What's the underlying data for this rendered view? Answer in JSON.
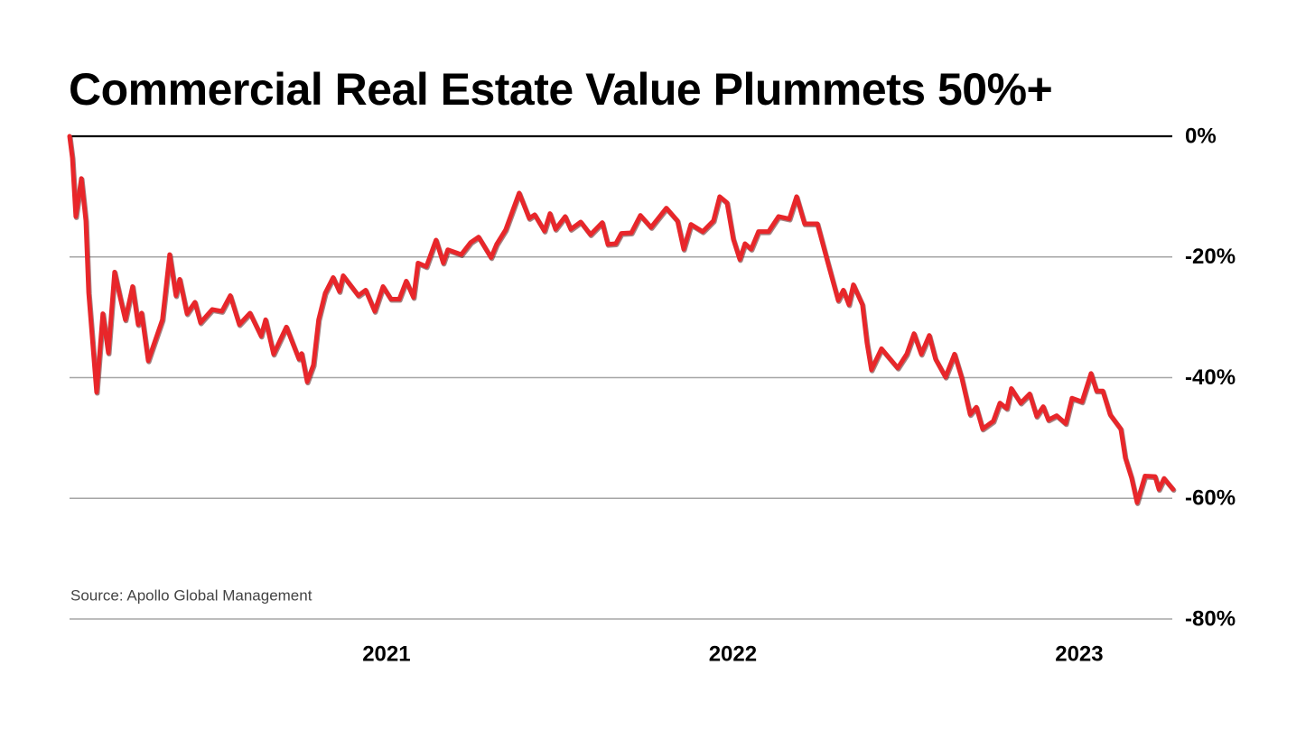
{
  "chart_data": {
    "type": "line",
    "title": "Commercial Real Estate Value Plummets 50%+",
    "source": "Source: Apollo Global Management",
    "color": "#e8262a",
    "xlim": [
      2020.085,
      2023.274
    ],
    "xticks": [
      2021,
      2022,
      2023
    ],
    "ylim": [
      -80,
      0
    ],
    "yticks": [
      {
        "value": 0,
        "label": "0%"
      },
      {
        "value": -20,
        "label": "-20%"
      },
      {
        "value": -40,
        "label": "-40%"
      },
      {
        "value": -60,
        "label": "-60%"
      },
      {
        "value": -80,
        "label": "-80%"
      }
    ],
    "grid": true,
    "x": [
      2020.085,
      2020.093,
      2020.103,
      2020.119,
      2020.132,
      2020.14,
      2020.163,
      2020.181,
      2020.197,
      2020.215,
      2020.231,
      2020.246,
      2020.267,
      2020.283,
      2020.293,
      2020.312,
      2020.353,
      2020.374,
      2020.392,
      2020.403,
      2020.424,
      2020.447,
      2020.463,
      2020.497,
      2020.525,
      2020.549,
      2020.575,
      2020.606,
      2020.638,
      2020.651,
      2020.674,
      2020.711,
      2020.747,
      2020.755,
      2020.771,
      2020.789,
      2020.804,
      2020.823,
      2020.846,
      2020.864,
      2020.875,
      2020.919,
      2020.94,
      2020.966,
      2020.99,
      2021.013,
      2021.037,
      2021.057,
      2021.078,
      2021.091,
      2021.115,
      2021.143,
      2021.164,
      2021.177,
      2021.216,
      2021.243,
      2021.266,
      2021.302,
      2021.318,
      2021.344,
      2021.383,
      2021.412,
      2021.428,
      2021.456,
      2021.472,
      2021.488,
      2021.516,
      2021.532,
      2021.561,
      2021.589,
      2021.623,
      2021.639,
      2021.662,
      2021.678,
      2021.707,
      2021.733,
      2021.764,
      2021.808,
      2021.84,
      2021.858,
      2021.879,
      2021.913,
      2021.944,
      2021.962,
      2021.983,
      2022.001,
      2022.02,
      2022.035,
      2022.053,
      2022.074,
      2022.103,
      2022.132,
      2022.163,
      2022.184,
      2022.207,
      2022.244,
      2022.273,
      2022.304,
      2022.319,
      2022.335,
      2022.348,
      2022.374,
      2022.387,
      2022.4,
      2022.429,
      2022.476,
      2022.502,
      2022.523,
      2022.544,
      2022.567,
      2022.585,
      2022.614,
      2022.64,
      2022.661,
      2022.685,
      2022.703,
      2022.721,
      2022.752,
      2022.771,
      2022.791,
      2022.804,
      2022.831,
      2022.857,
      2022.877,
      2022.896,
      2022.911,
      2022.935,
      2022.961,
      2022.979,
      2023.008,
      2023.034,
      2023.05,
      2023.068,
      2023.089,
      2023.12,
      2023.133,
      2023.151,
      2023.167,
      2023.19,
      2023.219,
      2023.23,
      2023.245,
      2023.271
    ],
    "values": [
      0,
      -3.6,
      -13.3,
      -7.0,
      -14.0,
      -25.9,
      -42.4,
      -29.4,
      -35.9,
      -22.5,
      -26.7,
      -30.4,
      -24.9,
      -31.2,
      -29.3,
      -37.2,
      -30.4,
      -19.6,
      -26.4,
      -23.7,
      -29.4,
      -27.5,
      -30.9,
      -28.7,
      -29.0,
      -26.4,
      -31.2,
      -29.3,
      -33.1,
      -30.4,
      -36.1,
      -31.6,
      -36.9,
      -36.0,
      -40.7,
      -37.9,
      -30.4,
      -26.0,
      -23.4,
      -25.7,
      -23.1,
      -26.4,
      -25.5,
      -29.0,
      -24.9,
      -27.0,
      -27.0,
      -24.0,
      -26.7,
      -21.0,
      -21.6,
      -17.2,
      -21.0,
      -18.8,
      -19.6,
      -17.6,
      -16.7,
      -20.1,
      -17.9,
      -15.5,
      -9.4,
      -13.6,
      -13.0,
      -15.7,
      -12.8,
      -15.4,
      -13.3,
      -15.4,
      -14.2,
      -16.3,
      -14.3,
      -17.9,
      -17.8,
      -16.1,
      -16.0,
      -13.1,
      -15.1,
      -11.9,
      -14.0,
      -18.7,
      -14.6,
      -15.8,
      -14.0,
      -10.0,
      -11.0,
      -17.0,
      -20.4,
      -17.8,
      -18.7,
      -15.8,
      -15.8,
      -13.3,
      -13.7,
      -10.0,
      -14.5,
      -14.5,
      -20.7,
      -27.2,
      -25.5,
      -27.9,
      -24.6,
      -27.9,
      -34.2,
      -38.7,
      -35.2,
      -38.4,
      -36.1,
      -32.7,
      -36.1,
      -33.0,
      -36.9,
      -39.9,
      -36.1,
      -40.1,
      -46.1,
      -44.9,
      -48.5,
      -47.2,
      -44.2,
      -45.1,
      -41.8,
      -44.2,
      -42.7,
      -46.4,
      -44.8,
      -47.0,
      -46.3,
      -47.6,
      -43.4,
      -44.0,
      -39.3,
      -42.2,
      -42.2,
      -46.1,
      -48.5,
      -53.3,
      -56.6,
      -60.7,
      -56.3,
      -56.4,
      -58.5,
      -56.7,
      -58.5
    ]
  }
}
